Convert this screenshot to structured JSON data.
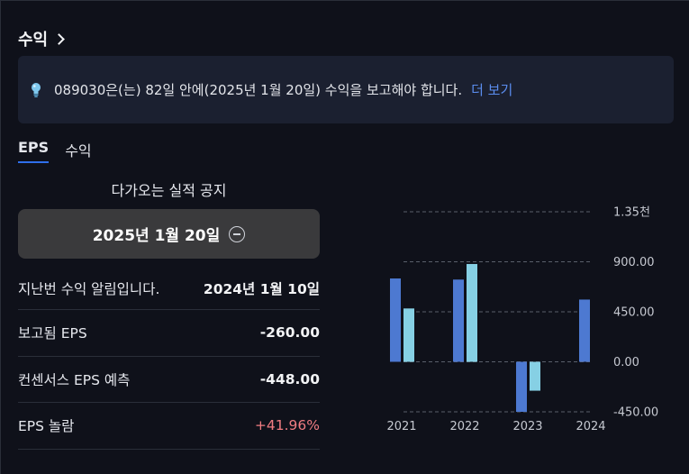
{
  "section": {
    "title": "수익"
  },
  "notice": {
    "text": "089030은(는) 82일 안에(2025년 1월 20일) 수익을 보고해야 합니다.",
    "link": "더 보기"
  },
  "tabs": [
    {
      "label": "EPS",
      "active": true
    },
    {
      "label": "수익",
      "active": false
    }
  ],
  "upcoming": {
    "label": "다가오는 실적 공지",
    "date": "2025년 1월 20일"
  },
  "details": [
    {
      "label": "지난번 수익 알림입니다.",
      "value": "2024년 1월 10일"
    },
    {
      "label": "보고됨 EPS",
      "value": "-260.00"
    },
    {
      "label": "컨센서스 EPS 예측",
      "value": "-448.00"
    },
    {
      "label": "EPS 놀람",
      "value": "+41.96%"
    }
  ],
  "colors": {
    "background": "#0f111a",
    "accent_blue": "#2f6feb",
    "link_blue": "#5b8def",
    "positive_surprise": "#f07c82",
    "bar_dark": "#4d79d1",
    "bar_light": "#86d0e4"
  },
  "chart_data": {
    "type": "bar",
    "categories": [
      "2021",
      "2022",
      "2023",
      "2024"
    ],
    "series": [
      {
        "values": [
          750,
          740,
          -450,
          560
        ],
        "color": "#4d79d1"
      },
      {
        "values": [
          480,
          880,
          -260,
          null
        ],
        "color": "#86d0e4"
      }
    ],
    "y_ticks": [
      1350,
      900,
      450,
      0,
      -450
    ],
    "y_tick_labels": [
      "1.35천",
      "900.00",
      "450.00",
      "0.00",
      "-450.00"
    ],
    "ylim": [
      -450,
      1350
    ],
    "grid": true,
    "gridline_style": "dashed",
    "y_axis_position": "right"
  }
}
